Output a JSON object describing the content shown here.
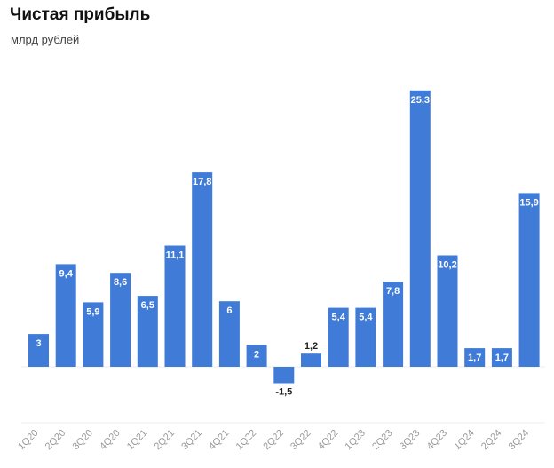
{
  "chart_data": {
    "type": "bar",
    "title": "Чистая прибыль",
    "subtitle": "млрд рублей",
    "categories": [
      "1Q20",
      "2Q20",
      "3Q20",
      "4Q20",
      "1Q21",
      "2Q21",
      "3Q21",
      "4Q21",
      "1Q22",
      "2Q22",
      "3Q22",
      "4Q22",
      "1Q23",
      "2Q23",
      "3Q23",
      "4Q23",
      "1Q24",
      "2Q24",
      "3Q24"
    ],
    "value_labels": [
      "3",
      "9,4",
      "5,9",
      "8,6",
      "6,5",
      "11,1",
      "17,8",
      "6",
      "2",
      "-1,5",
      "1,2",
      "5,4",
      "5,4",
      "7,8",
      "25,3",
      "10,2",
      "1,7",
      "1,7",
      "15,9"
    ],
    "values": [
      3,
      9.4,
      5.9,
      8.6,
      6.5,
      11.1,
      17.8,
      6,
      2,
      -1.5,
      1.2,
      5.4,
      5.4,
      7.8,
      25.3,
      10.2,
      1.7,
      1.7,
      15.9
    ],
    "bar_color": "#3f7bd7",
    "grid": false,
    "legend": "none"
  }
}
